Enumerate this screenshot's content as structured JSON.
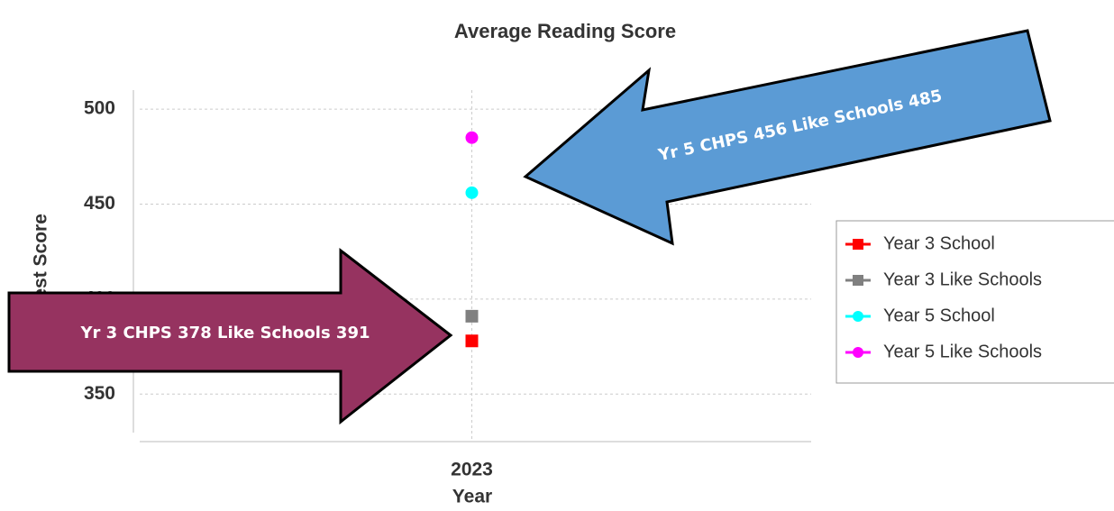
{
  "chart_data": {
    "type": "scatter",
    "title": "Average Reading Score",
    "x_label": "Year",
    "y_label": "Test Score",
    "categories": [
      "2023"
    ],
    "series": [
      {
        "name": "Year 3 School",
        "color": "#ff0000",
        "marker": "square",
        "values": [
          378
        ]
      },
      {
        "name": "Year 3 Like Schools",
        "color": "#808080",
        "marker": "square",
        "values": [
          391
        ]
      },
      {
        "name": "Year 5 School",
        "color": "#00ffff",
        "marker": "circle",
        "values": [
          456
        ]
      },
      {
        "name": "Year 5 Like Schools",
        "color": "#ff00ff",
        "marker": "circle",
        "values": [
          485
        ]
      }
    ],
    "ylim": [
      325,
      510
    ],
    "yticks": [
      350,
      400,
      450,
      500
    ],
    "grid": true,
    "legend": "right",
    "annotations": [
      "Yr 5 CHPS 456  Like Schools 485",
      "Yr 3 CHPS 378  Like Schools 391"
    ]
  }
}
